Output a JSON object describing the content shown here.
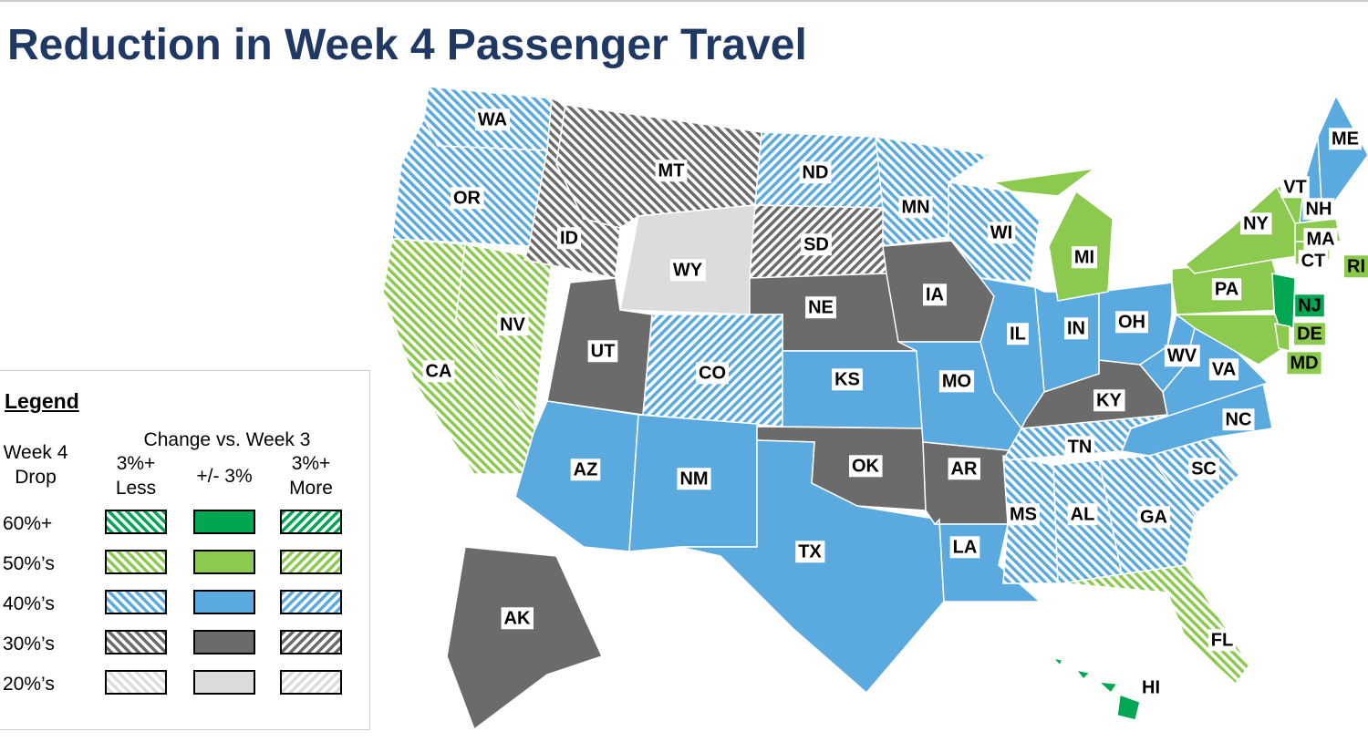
{
  "title": "Reduction in Week 4 Passenger Travel",
  "legend": {
    "title": "Legend",
    "row_header": "Week 4 Drop",
    "column_header": "Change vs. Week 3",
    "columns": [
      {
        "label": "3%+ Less",
        "hatch": "less"
      },
      {
        "label": "+/- 3%",
        "hatch": "none"
      },
      {
        "label": "3%+ More",
        "hatch": "more"
      }
    ],
    "rows": [
      {
        "label": "60%+",
        "color": "#00a651"
      },
      {
        "label": "50%’s",
        "color": "#8cc94f"
      },
      {
        "label": "40%’s",
        "color": "#5aaae0"
      },
      {
        "label": "30%’s",
        "color": "#6b6b6b"
      },
      {
        "label": "20%’s",
        "color": "#dcdcdc"
      }
    ]
  },
  "states": [
    {
      "label": "WA",
      "color": "#5aaae0",
      "hatch": "less"
    },
    {
      "label": "OR",
      "color": "#5aaae0",
      "hatch": "less"
    },
    {
      "label": "CA",
      "color": "#8cc94f",
      "hatch": "less"
    },
    {
      "label": "NV",
      "color": "#8cc94f",
      "hatch": "less"
    },
    {
      "label": "ID",
      "color": "#6b6b6b",
      "hatch": "less"
    },
    {
      "label": "MT",
      "color": "#6b6b6b",
      "hatch": "less"
    },
    {
      "label": "WY",
      "color": "#dcdcdc",
      "hatch": "none"
    },
    {
      "label": "ND",
      "color": "#5aaae0",
      "hatch": "more"
    },
    {
      "label": "SD",
      "color": "#6b6b6b",
      "hatch": "more"
    },
    {
      "label": "NE",
      "color": "#6b6b6b",
      "hatch": "none"
    },
    {
      "label": "UT",
      "color": "#6b6b6b",
      "hatch": "none"
    },
    {
      "label": "CO",
      "color": "#5aaae0",
      "hatch": "more"
    },
    {
      "label": "AZ",
      "color": "#5aaae0",
      "hatch": "none"
    },
    {
      "label": "NM",
      "color": "#5aaae0",
      "hatch": "none"
    },
    {
      "label": "KS",
      "color": "#5aaae0",
      "hatch": "none"
    },
    {
      "label": "OK",
      "color": "#6b6b6b",
      "hatch": "none"
    },
    {
      "label": "TX",
      "color": "#5aaae0",
      "hatch": "none"
    },
    {
      "label": "IA",
      "color": "#6b6b6b",
      "hatch": "none"
    },
    {
      "label": "MN",
      "color": "#5aaae0",
      "hatch": "less"
    },
    {
      "label": "WI",
      "color": "#5aaae0",
      "hatch": "less"
    },
    {
      "label": "IL",
      "color": "#5aaae0",
      "hatch": "none"
    },
    {
      "label": "MO",
      "color": "#5aaae0",
      "hatch": "none"
    },
    {
      "label": "AR",
      "color": "#6b6b6b",
      "hatch": "none"
    },
    {
      "label": "LA",
      "color": "#5aaae0",
      "hatch": "none"
    },
    {
      "label": "MS",
      "color": "#5aaae0",
      "hatch": "less"
    },
    {
      "label": "AL",
      "color": "#5aaae0",
      "hatch": "less"
    },
    {
      "label": "GA",
      "color": "#5aaae0",
      "hatch": "less"
    },
    {
      "label": "FL",
      "color": "#8cc94f",
      "hatch": "less"
    },
    {
      "label": "SC",
      "color": "#5aaae0",
      "hatch": "less"
    },
    {
      "label": "NC",
      "color": "#5aaae0",
      "hatch": "none"
    },
    {
      "label": "TN",
      "color": "#5aaae0",
      "hatch": "less"
    },
    {
      "label": "KY",
      "color": "#6b6b6b",
      "hatch": "none"
    },
    {
      "label": "IN",
      "color": "#5aaae0",
      "hatch": "none"
    },
    {
      "label": "OH",
      "color": "#5aaae0",
      "hatch": "none"
    },
    {
      "label": "MI",
      "color": "#8cc94f",
      "hatch": "none"
    },
    {
      "label": "WV",
      "color": "#5aaae0",
      "hatch": "none"
    },
    {
      "label": "VA",
      "color": "#5aaae0",
      "hatch": "none"
    },
    {
      "label": "PA",
      "color": "#8cc94f",
      "hatch": "none"
    },
    {
      "label": "NY",
      "color": "#8cc94f",
      "hatch": "none"
    },
    {
      "label": "NJ",
      "color": "#00a651",
      "hatch": "none"
    },
    {
      "label": "MD",
      "color": "#8cc94f",
      "hatch": "none"
    },
    {
      "label": "DE",
      "color": "#8cc94f",
      "hatch": "none"
    },
    {
      "label": "VT",
      "color": "#8cc94f",
      "hatch": "none"
    },
    {
      "label": "NH",
      "color": "#5aaae0",
      "hatch": "none"
    },
    {
      "label": "ME",
      "color": "#5aaae0",
      "hatch": "none"
    },
    {
      "label": "MA",
      "color": "#8cc94f",
      "hatch": "none"
    },
    {
      "label": "CT",
      "color": "#8cc94f",
      "hatch": "none"
    },
    {
      "label": "RI",
      "color": "#8cc94f",
      "hatch": "none"
    },
    {
      "label": "AK",
      "color": "#6b6b6b",
      "hatch": "none"
    },
    {
      "label": "HI",
      "color": "#00a651",
      "hatch": "none"
    }
  ]
}
